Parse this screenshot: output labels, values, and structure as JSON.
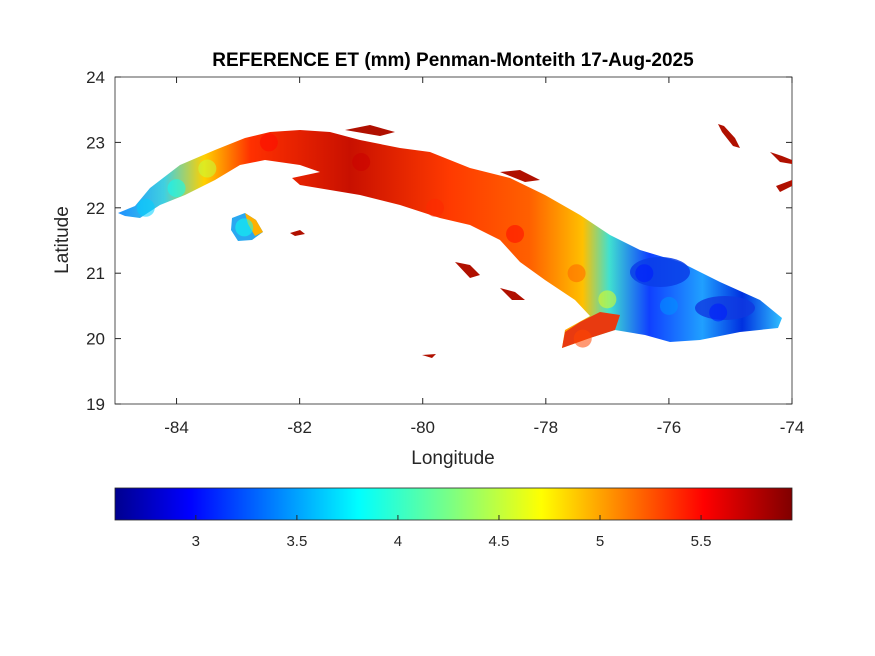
{
  "chart_data": {
    "type": "heatmap",
    "title": "REFERENCE ET (mm) Penman-Monteith 17-Aug-2025",
    "xlabel": "Longitude",
    "ylabel": "Latitude",
    "xlim": [
      -85,
      -74
    ],
    "ylim": [
      19,
      24
    ],
    "xticks": [
      -84,
      -82,
      -80,
      -78,
      -76,
      -74
    ],
    "yticks": [
      19,
      20,
      21,
      22,
      23,
      24
    ],
    "colormap": "jet",
    "colorbar": {
      "placement": "bottom",
      "range": [
        2.6,
        5.95
      ],
      "ticks": [
        3,
        3.5,
        4,
        4.5,
        5,
        5.5
      ]
    },
    "region_values": [
      {
        "lon": -84.5,
        "lat": 22.0,
        "value": 3.7
      },
      {
        "lon": -84.0,
        "lat": 22.3,
        "value": 3.9
      },
      {
        "lon": -83.5,
        "lat": 22.6,
        "value": 4.5
      },
      {
        "lon": -82.9,
        "lat": 21.7,
        "value": 3.9
      },
      {
        "lon": -82.5,
        "lat": 23.0,
        "value": 5.5
      },
      {
        "lon": -81.0,
        "lat": 22.7,
        "value": 5.7
      },
      {
        "lon": -79.8,
        "lat": 22.0,
        "value": 5.4
      },
      {
        "lon": -78.5,
        "lat": 21.6,
        "value": 5.5
      },
      {
        "lon": -77.5,
        "lat": 21.0,
        "value": 5.2
      },
      {
        "lon": -77.0,
        "lat": 20.6,
        "value": 4.6
      },
      {
        "lon": -76.4,
        "lat": 21.0,
        "value": 3.1
      },
      {
        "lon": -76.0,
        "lat": 20.5,
        "value": 3.5
      },
      {
        "lon": -75.2,
        "lat": 20.4,
        "value": 3.1
      },
      {
        "lon": -77.4,
        "lat": 20.0,
        "value": 5.3
      }
    ]
  }
}
